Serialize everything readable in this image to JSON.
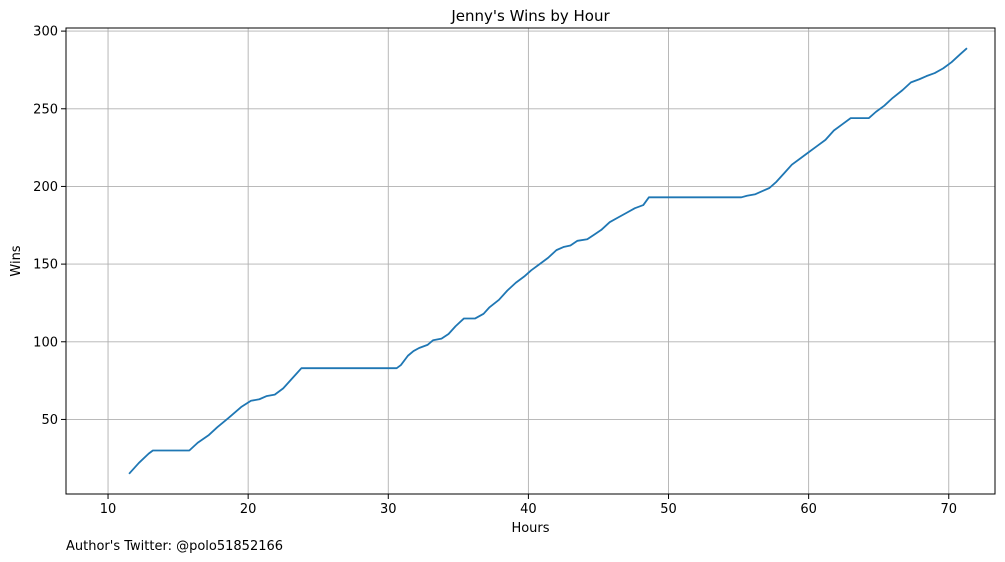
{
  "chart_data": {
    "type": "line",
    "title": "Jenny's Wins by Hour",
    "xlabel": "Hours",
    "ylabel": "Wins",
    "xlim": [
      7,
      73.3
    ],
    "ylim": [
      2,
      302
    ],
    "xticks": [
      10,
      20,
      30,
      40,
      50,
      60,
      70
    ],
    "yticks": [
      50,
      100,
      150,
      200,
      250,
      300
    ],
    "grid": true,
    "series": [
      {
        "color": "#1f77b4",
        "points": [
          [
            11.5,
            15
          ],
          [
            12.2,
            22
          ],
          [
            12.9,
            28
          ],
          [
            13.2,
            30
          ],
          [
            15.8,
            30
          ],
          [
            16.4,
            35
          ],
          [
            17.2,
            40
          ],
          [
            17.8,
            45
          ],
          [
            18.6,
            51
          ],
          [
            19.5,
            58
          ],
          [
            20.2,
            62
          ],
          [
            20.8,
            63
          ],
          [
            21.3,
            65
          ],
          [
            21.9,
            66
          ],
          [
            22.5,
            70
          ],
          [
            23.0,
            75
          ],
          [
            23.5,
            80
          ],
          [
            23.8,
            83
          ],
          [
            30.6,
            83
          ],
          [
            30.9,
            85
          ],
          [
            31.4,
            91
          ],
          [
            31.8,
            94
          ],
          [
            32.2,
            96
          ],
          [
            32.8,
            98
          ],
          [
            33.2,
            101
          ],
          [
            33.8,
            102
          ],
          [
            34.3,
            105
          ],
          [
            34.8,
            110
          ],
          [
            35.4,
            115
          ],
          [
            36.2,
            115
          ],
          [
            36.8,
            118
          ],
          [
            37.2,
            122
          ],
          [
            37.9,
            127
          ],
          [
            38.5,
            133
          ],
          [
            39.1,
            138
          ],
          [
            39.7,
            142
          ],
          [
            40.2,
            146
          ],
          [
            40.8,
            150
          ],
          [
            41.4,
            154
          ],
          [
            42.0,
            159
          ],
          [
            42.5,
            161
          ],
          [
            43.0,
            162
          ],
          [
            43.5,
            165
          ],
          [
            44.2,
            166
          ],
          [
            44.7,
            169
          ],
          [
            45.2,
            172
          ],
          [
            45.8,
            177
          ],
          [
            46.4,
            180
          ],
          [
            47.0,
            183
          ],
          [
            47.6,
            186
          ],
          [
            48.2,
            188
          ],
          [
            48.6,
            193
          ],
          [
            55.2,
            193
          ],
          [
            55.6,
            194
          ],
          [
            56.2,
            195
          ],
          [
            56.7,
            197
          ],
          [
            57.2,
            199
          ],
          [
            57.7,
            203
          ],
          [
            58.3,
            209
          ],
          [
            58.8,
            214
          ],
          [
            59.4,
            218
          ],
          [
            60.0,
            222
          ],
          [
            60.6,
            226
          ],
          [
            61.2,
            230
          ],
          [
            61.8,
            236
          ],
          [
            62.4,
            240
          ],
          [
            63.0,
            244
          ],
          [
            64.3,
            244
          ],
          [
            64.8,
            248
          ],
          [
            65.4,
            252
          ],
          [
            66.0,
            257
          ],
          [
            66.7,
            262
          ],
          [
            67.3,
            267
          ],
          [
            67.9,
            269
          ],
          [
            68.4,
            271
          ],
          [
            69.0,
            273
          ],
          [
            69.6,
            276
          ],
          [
            70.2,
            280
          ],
          [
            70.8,
            285
          ],
          [
            71.3,
            289
          ]
        ]
      }
    ]
  },
  "footnote": "Author's Twitter: @polo51852166"
}
